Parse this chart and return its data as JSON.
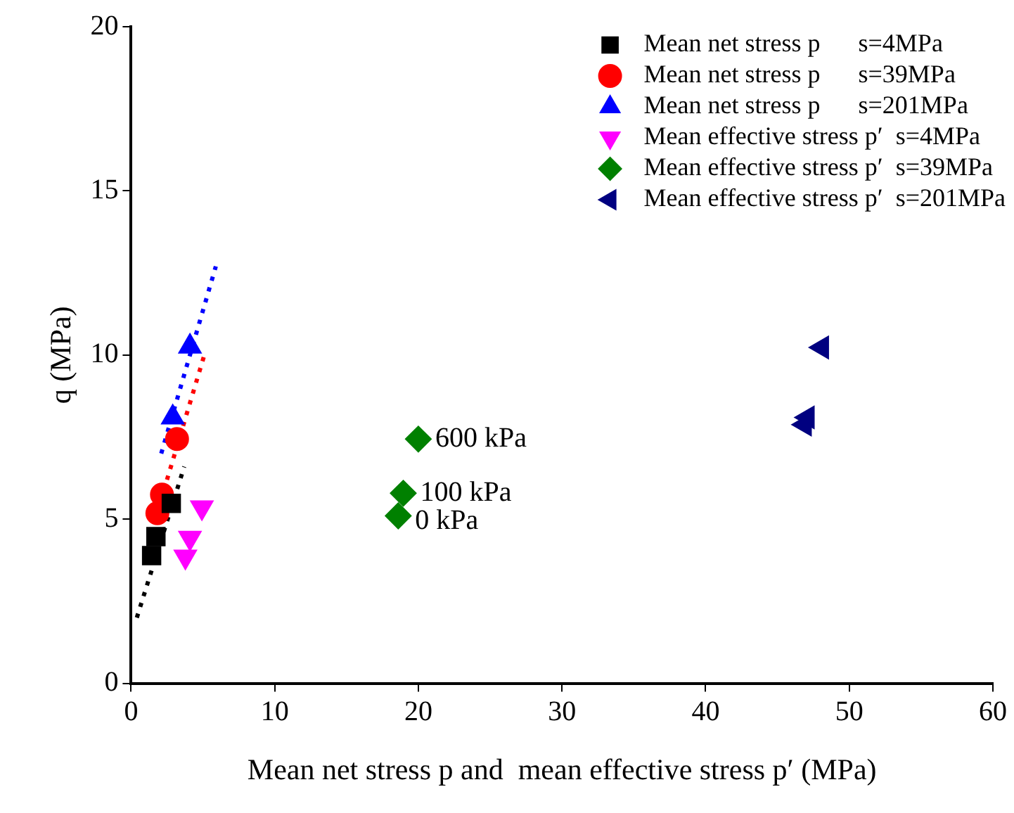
{
  "chart_data": {
    "type": "scatter",
    "xlabel": "Mean net stress p and  mean effective stress p′ (MPa)",
    "ylabel": "q (MPa)",
    "xlim": [
      0,
      60
    ],
    "xticks": [
      0,
      10,
      20,
      30,
      40,
      50,
      60
    ],
    "ylim": [
      0,
      20
    ],
    "yticks": [
      0,
      5,
      10,
      15,
      20
    ],
    "grid": false,
    "legend": "top right",
    "series": [
      {
        "name": "Mean net stress p      s=4MPa",
        "color": "#000000",
        "marker": "square",
        "x": [
          1.43,
          1.73,
          2.8
        ],
        "values": [
          3.89,
          4.47,
          5.48
        ]
      },
      {
        "name": "Mean net stress p      s=39MPa",
        "color": "#ff0000",
        "marker": "circle",
        "x": [
          1.83,
          2.15,
          3.2
        ],
        "values": [
          5.18,
          5.75,
          7.44
        ]
      },
      {
        "name": "Mean net stress p      s=201MPa",
        "color": "#0000ff",
        "marker": "triangle",
        "x": [
          2.9,
          4.1
        ],
        "values": [
          8.1,
          10.26
        ]
      },
      {
        "name": "Mean effective stress p′  s=4MPa",
        "color": "#ff00ff",
        "marker": "triangle-down",
        "x": [
          3.78,
          4.1,
          4.93
        ],
        "values": [
          3.86,
          4.43,
          5.36
        ]
      },
      {
        "name": "Mean effective stress p′  s=39MPa",
        "color": "#008000",
        "marker": "diamond",
        "x": [
          18.6,
          18.95,
          20.0
        ],
        "values": [
          5.1,
          5.79,
          7.44
        ]
      },
      {
        "name": "Mean effective stress p′  s=201MPa",
        "color": "#000080",
        "marker": "triangle-left",
        "x": [
          46.9,
          47.1,
          48.1
        ],
        "values": [
          7.88,
          8.1,
          10.23
        ]
      },
      {
        "type": "line",
        "color": "#000000",
        "line_style": "dotted",
        "marker": "none",
        "x": [
          0.4,
          3.7
        ],
        "values": [
          2.0,
          6.6
        ]
      },
      {
        "type": "line",
        "color": "#ff0000",
        "line_style": "dotted",
        "marker": "none",
        "x": [
          2.5,
          5.1
        ],
        "values": [
          6.2,
          10.0
        ]
      },
      {
        "type": "line",
        "color": "#0000ff",
        "line_style": "dotted",
        "marker": "none",
        "x": [
          2.1,
          5.9
        ],
        "values": [
          7.0,
          12.7
        ]
      }
    ],
    "annotations": [
      {
        "text": "600 kPa",
        "x": 20.0,
        "y": 7.44
      },
      {
        "text": "100 kPa",
        "x": 18.95,
        "y": 5.79
      },
      {
        "text": "0 kPa",
        "x": 18.6,
        "y": 5.1
      }
    ]
  }
}
